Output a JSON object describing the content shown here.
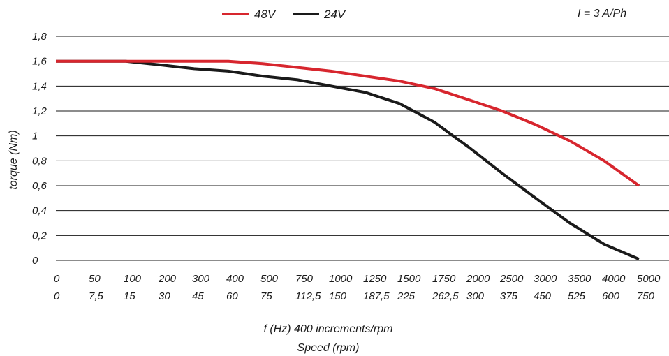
{
  "chart_data": {
    "type": "line",
    "annotation": "I = 3 A/Ph",
    "ylabel": "torque (Nm)",
    "xlabel_line1": "f (Hz) 400 increments/rpm",
    "xlabel_line2": "Speed (rpm)",
    "x_ticks_hz": [
      "0",
      "50",
      "100",
      "200",
      "300",
      "400",
      "500",
      "750",
      "1000",
      "1250",
      "1500",
      "1750",
      "2000",
      "2500",
      "3000",
      "3500",
      "4000",
      "5000"
    ],
    "x_ticks_rpm": [
      "0",
      "7,5",
      "15",
      "30",
      "45",
      "60",
      "75",
      "112,5",
      "150",
      "187,5",
      "225",
      "262,5",
      "300",
      "375",
      "450",
      "525",
      "600",
      "750"
    ],
    "y_ticks": [
      "0",
      "0,2",
      "0,4",
      "0,6",
      "0,8",
      "1",
      "1,2",
      "1,4",
      "1,6",
      "1,8"
    ],
    "ylim": [
      0,
      1.8
    ],
    "grid": "horizontal",
    "legend_position": "top-center",
    "series": [
      {
        "name": "48V",
        "color": "#d7262e",
        "x": [
          "0",
          "50",
          "100",
          "200",
          "300",
          "400",
          "500",
          "750",
          "1000",
          "1250",
          "1500",
          "1750",
          "2000",
          "2500",
          "3000",
          "3500",
          "4000",
          "5000"
        ],
        "values": [
          1.6,
          1.6,
          1.6,
          1.6,
          1.6,
          1.6,
          1.58,
          1.55,
          1.52,
          1.48,
          1.44,
          1.38,
          1.29,
          1.2,
          1.09,
          0.96,
          0.8,
          0.6
        ]
      },
      {
        "name": "24V",
        "color": "#1a1a1a",
        "x": [
          "0",
          "50",
          "100",
          "200",
          "300",
          "400",
          "500",
          "750",
          "1000",
          "1250",
          "1500",
          "1750",
          "2000",
          "2500",
          "3000",
          "3500",
          "4000",
          "5000"
        ],
        "values": [
          1.6,
          1.6,
          1.6,
          1.57,
          1.54,
          1.52,
          1.48,
          1.45,
          1.4,
          1.35,
          1.26,
          1.11,
          0.91,
          0.7,
          0.5,
          0.3,
          0.13,
          0.01
        ]
      }
    ]
  }
}
